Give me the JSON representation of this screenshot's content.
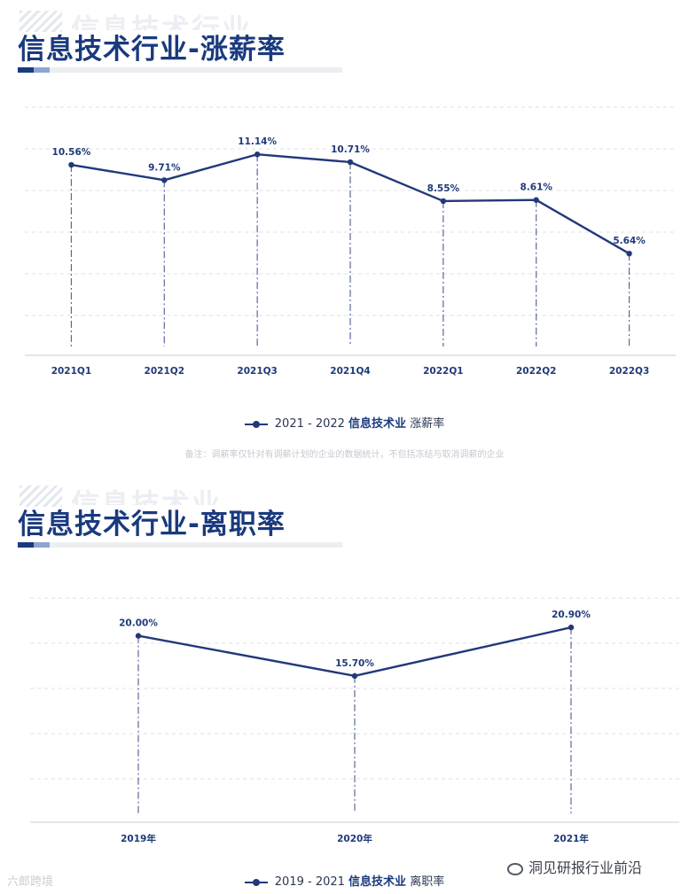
{
  "sections": [
    {
      "ghost_text": "信息技术行业",
      "title": "信息技术行业-涨薪率",
      "legend": {
        "years": "2021 - 2022",
        "industry": "信息技术业",
        "metric": "涨薪率"
      },
      "note": "备注：调薪率仅针对有调薪计划的企业的数据统计，不包括冻结与取消调薪的企业"
    },
    {
      "ghost_text": "信息技术业",
      "title": "信息技术行业-离职率",
      "legend": {
        "years": "2019 - 2021",
        "industry": "信息技术业",
        "metric": "离职率"
      }
    }
  ],
  "chart_data": [
    {
      "type": "line",
      "categories": [
        "2021Q1",
        "2021Q2",
        "2021Q3",
        "2021Q4",
        "2022Q1",
        "2022Q2",
        "2022Q3"
      ],
      "values": [
        10.56,
        9.71,
        11.14,
        10.71,
        8.55,
        8.61,
        5.64
      ],
      "labels": [
        "10.56%",
        "9.71%",
        "11.14%",
        "10.71%",
        "8.55%",
        "8.61%",
        "5.64%"
      ],
      "ylim": [
        0,
        14
      ],
      "grid": true,
      "color": "#23387a"
    },
    {
      "type": "line",
      "categories": [
        "2019年",
        "2020年",
        "2021年"
      ],
      "values": [
        20.0,
        15.7,
        20.9
      ],
      "labels": [
        "20.00%",
        "15.70%",
        "20.90%"
      ],
      "ylim": [
        0,
        25
      ],
      "grid": true,
      "color": "#23387a"
    }
  ],
  "watermarks": {
    "left": "六郎跨境",
    "right": "洞见研报行业前沿"
  }
}
